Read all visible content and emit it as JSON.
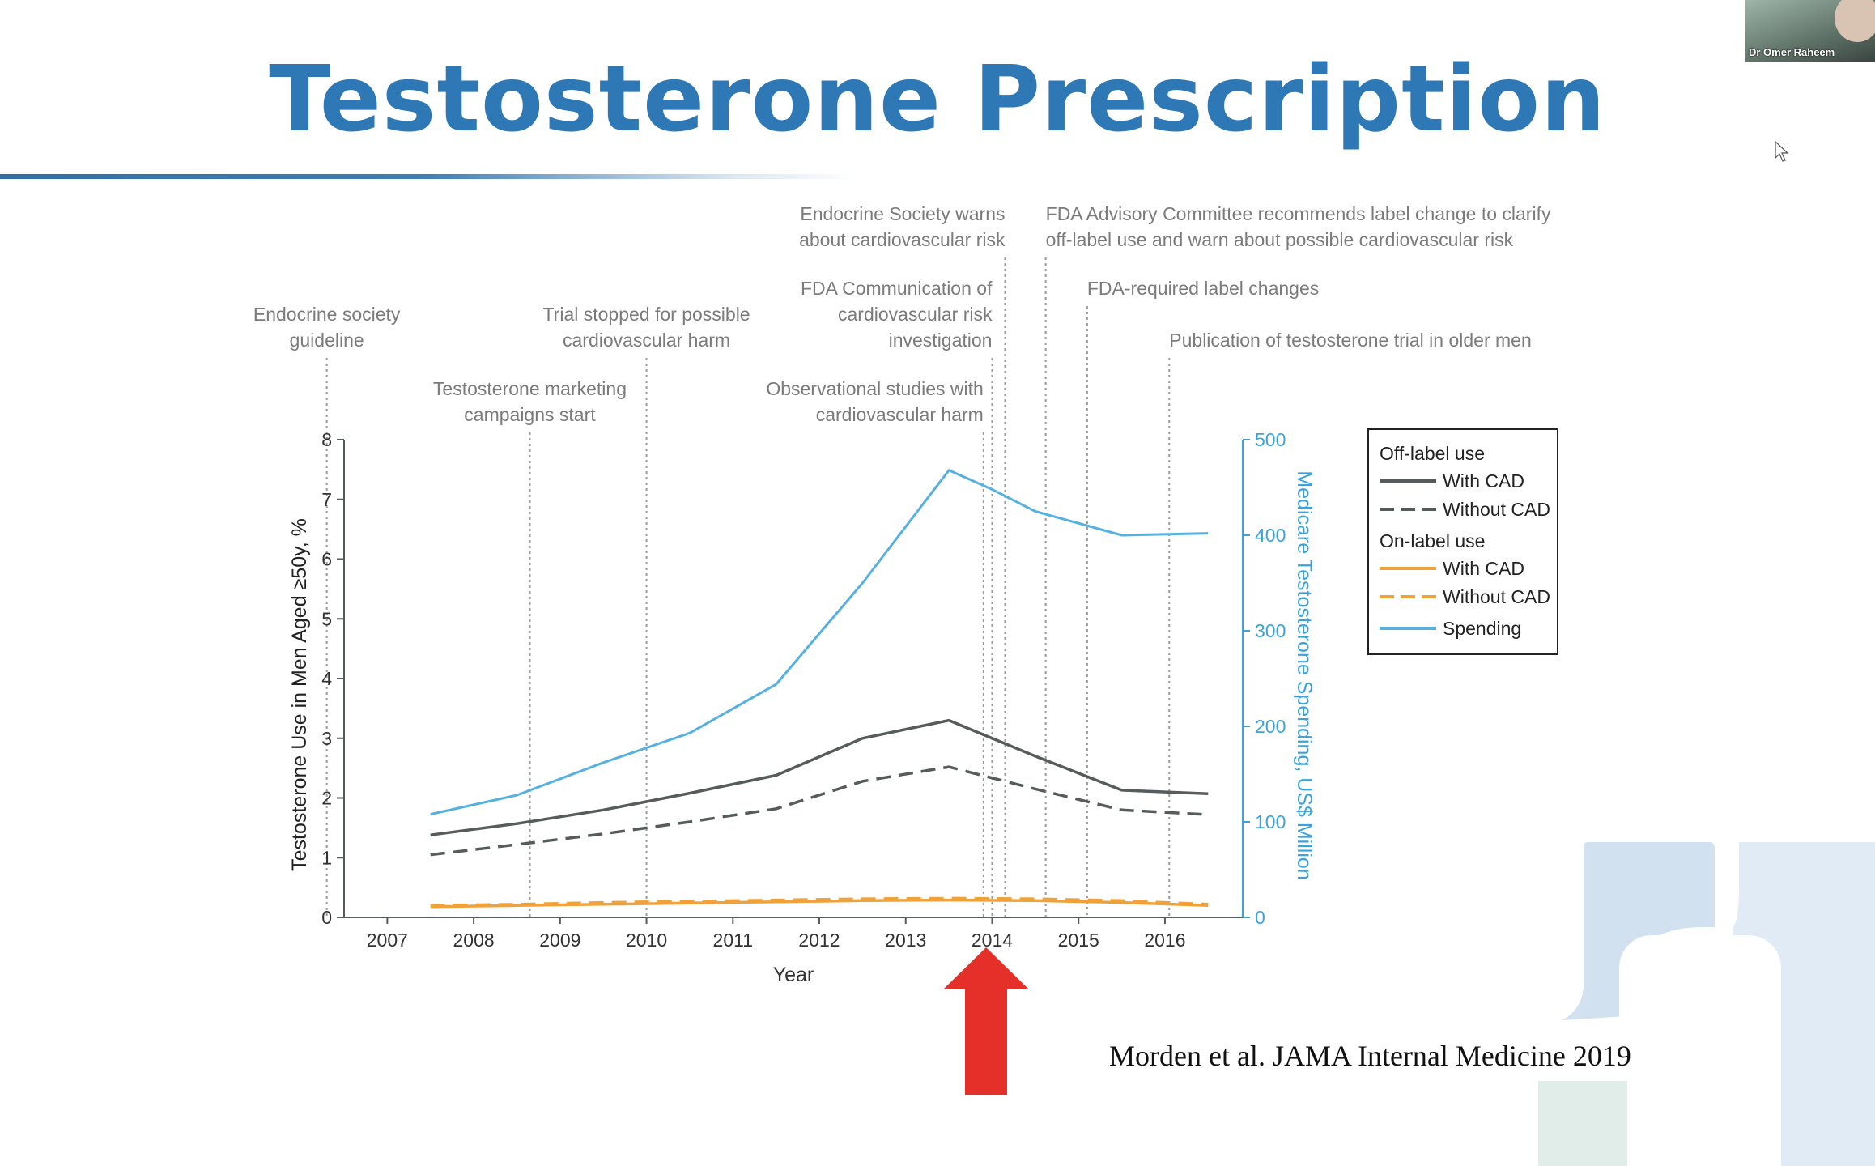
{
  "slide": {
    "title": "Testosterone Prescription",
    "citation": "Morden et al. JAMA Internal Medicine 2019"
  },
  "video_tile": {
    "name": "Dr Omer Raheem"
  },
  "chart_data": {
    "type": "line",
    "x_label": "Year",
    "y_label_left": "Testosterone Use in Men Aged ≥50y, %",
    "y_label_right": "Medicare Testosterone Spending, US$ Million",
    "xlim": [
      2006.5,
      2016.9
    ],
    "ylim_left": [
      0,
      8
    ],
    "ylim_right": [
      0,
      500
    ],
    "x_ticks": [
      2007,
      2008,
      2009,
      2010,
      2011,
      2012,
      2013,
      2014,
      2015,
      2016
    ],
    "y_ticks_left": [
      0,
      1,
      2,
      3,
      4,
      5,
      6,
      7,
      8
    ],
    "y_ticks_right": [
      0,
      100,
      200,
      300,
      400,
      500
    ],
    "series": [
      {
        "name": "Off-label use With CAD",
        "group": "Off-label use",
        "label": "With CAD",
        "axis": "left",
        "color": "#565b5c",
        "dash": "solid",
        "x": [
          2007.5,
          2008.5,
          2009.5,
          2010.5,
          2011.5,
          2012.5,
          2013.5,
          2014.5,
          2015.5,
          2016.5
        ],
        "y": [
          1.38,
          1.57,
          1.8,
          2.08,
          2.38,
          3.0,
          3.3,
          2.7,
          2.13,
          2.07
        ]
      },
      {
        "name": "Off-label use Without CAD",
        "group": "Off-label use",
        "label": "Without CAD",
        "axis": "left",
        "color": "#565b5c",
        "dash": "dashed",
        "x": [
          2007.5,
          2008.5,
          2009.5,
          2010.5,
          2011.5,
          2012.5,
          2013.5,
          2014.5,
          2015.5,
          2016.5
        ],
        "y": [
          1.05,
          1.22,
          1.4,
          1.6,
          1.82,
          2.28,
          2.52,
          2.15,
          1.8,
          1.72
        ]
      },
      {
        "name": "On-label use With CAD",
        "group": "On-label use",
        "label": "With CAD",
        "axis": "left",
        "color": "#f0a23a",
        "dash": "solid",
        "x": [
          2007.5,
          2008.5,
          2009.5,
          2010.5,
          2011.5,
          2012.5,
          2013.5,
          2014.5,
          2015.5,
          2016.5
        ],
        "y": [
          0.18,
          0.2,
          0.22,
          0.24,
          0.26,
          0.28,
          0.29,
          0.28,
          0.25,
          0.2
        ]
      },
      {
        "name": "On-label use Without CAD",
        "group": "On-label use",
        "label": "Without CAD",
        "axis": "left",
        "color": "#f0a23a",
        "dash": "dashed",
        "x": [
          2007.5,
          2008.5,
          2009.5,
          2010.5,
          2011.5,
          2012.5,
          2013.5,
          2014.5,
          2015.5,
          2016.5
        ],
        "y": [
          0.2,
          0.22,
          0.25,
          0.27,
          0.29,
          0.31,
          0.32,
          0.31,
          0.28,
          0.22
        ]
      },
      {
        "name": "Spending",
        "group": "",
        "label": "Spending",
        "axis": "right",
        "color": "#56b0e0",
        "dash": "solid",
        "x": [
          2007.5,
          2008.5,
          2009.5,
          2010.5,
          2011.5,
          2012.5,
          2013.5,
          2014.0,
          2014.5,
          2015.5,
          2016.5
        ],
        "y": [
          108,
          128,
          162,
          193,
          244,
          350,
          468,
          448,
          425,
          400,
          402
        ]
      }
    ],
    "legend": {
      "groups": [
        {
          "title": "Off-label use",
          "entries": [
            0,
            1
          ]
        },
        {
          "title": "On-label use",
          "entries": [
            2,
            3
          ]
        },
        {
          "title": "",
          "entries": [
            4
          ]
        }
      ],
      "position": "upper-right"
    },
    "events": [
      {
        "year": 2006.3,
        "label": [
          "Endocrine society",
          "guideline"
        ],
        "align": "middle",
        "row": 3
      },
      {
        "year": 2008.65,
        "label": [
          "Testosterone marketing",
          "campaigns start"
        ],
        "align": "middle",
        "row": 5
      },
      {
        "year": 2010.0,
        "label": [
          "Trial stopped for possible",
          "cardiovascular harm"
        ],
        "align": "middle",
        "row": 3
      },
      {
        "year": 2013.9,
        "label": [
          "Observational studies with",
          "cardiovascular harm"
        ],
        "align": "end",
        "row": 5
      },
      {
        "year": 2014.0,
        "label": [
          "FDA Communication of",
          "cardiovascular risk",
          "investigation"
        ],
        "align": "end",
        "row": 2
      },
      {
        "year": 2014.15,
        "label": [
          "Endocrine Society warns",
          "about cardiovascular risk"
        ],
        "align": "end",
        "row": 0
      },
      {
        "year": 2014.62,
        "label": [
          "FDA Advisory Committee recommends label change to clarify",
          "off-label use and warn about possible cardiovascular risk"
        ],
        "align": "start",
        "row": 0
      },
      {
        "year": 2015.1,
        "label": [
          "FDA-required label changes"
        ],
        "align": "start",
        "row": 2
      },
      {
        "year": 2016.05,
        "label": [
          "Publication of testosterone trial in older men"
        ],
        "align": "start",
        "row": 4
      }
    ],
    "highlight_year": 2014
  }
}
